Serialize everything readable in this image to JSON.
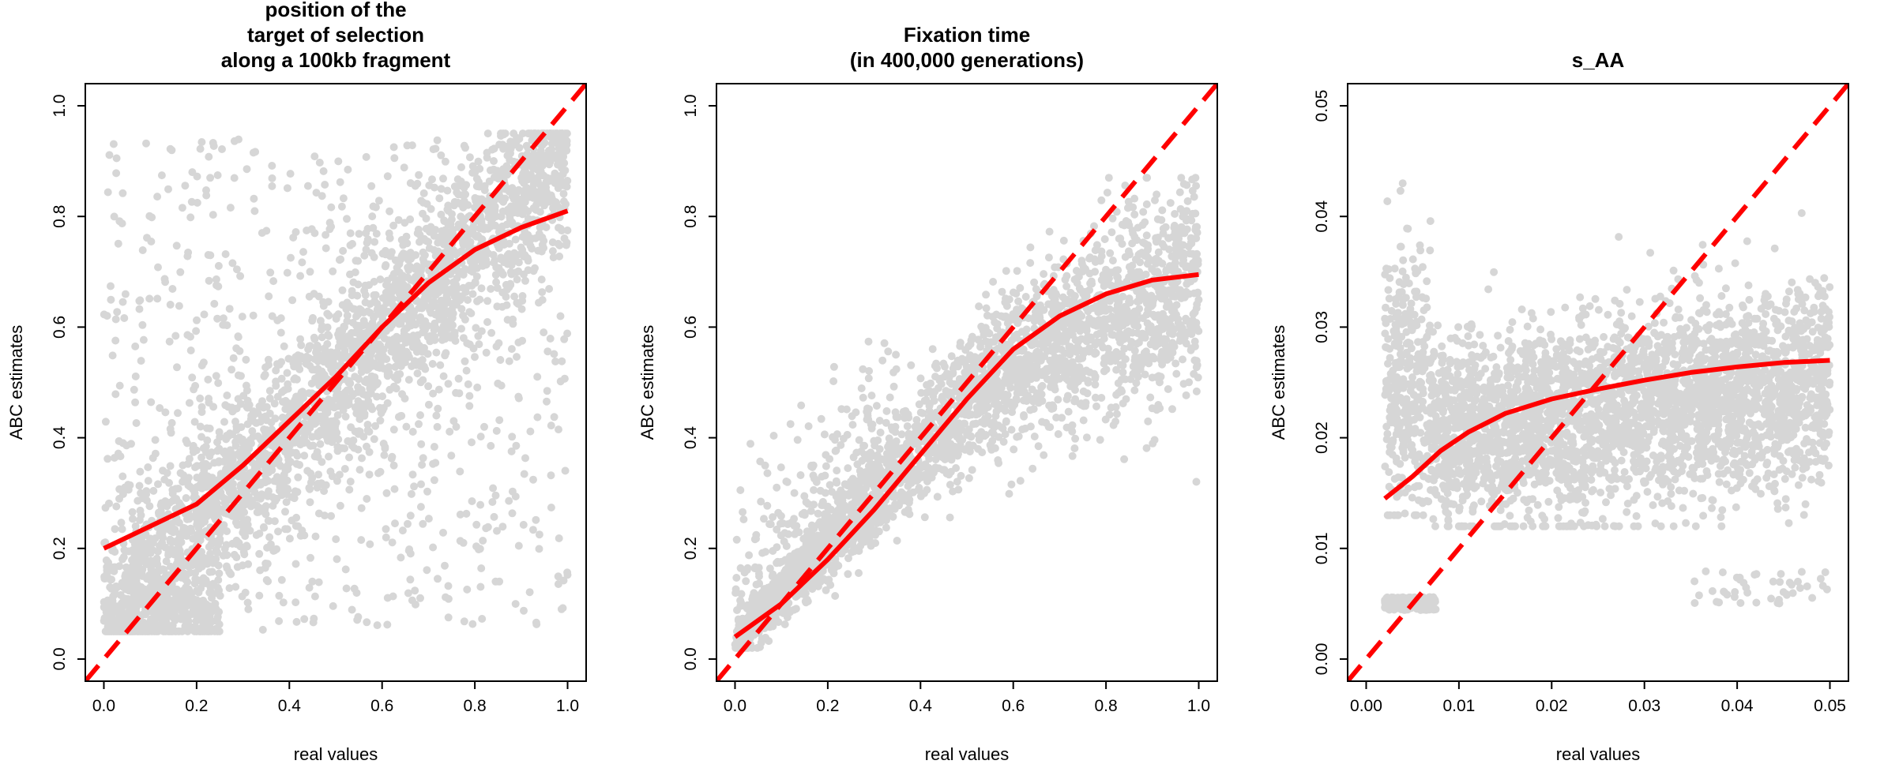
{
  "chart_data": [
    {
      "type": "scatter",
      "title_lines": [
        "position of the",
        "target of selection",
        "along a 100kb fragment"
      ],
      "xlabel": "real values",
      "ylabel": "ABC estimates",
      "xlim": [
        -0.04,
        1.04
      ],
      "ylim": [
        -0.04,
        1.04
      ],
      "xticks": [
        0.0,
        0.2,
        0.4,
        0.6,
        0.8,
        1.0
      ],
      "xtick_labels": [
        "0.0",
        "0.2",
        "0.4",
        "0.6",
        "0.8",
        "1.0"
      ],
      "yticks": [
        0.0,
        0.2,
        0.4,
        0.6,
        0.8,
        1.0
      ],
      "ytick_labels": [
        "0.0",
        "0.2",
        "0.4",
        "0.6",
        "0.8",
        "1.0"
      ],
      "points_color": "#000000",
      "points_opacity": 0.16,
      "series": [
        {
          "kind": "identity-line",
          "style": "dashed",
          "color": "#ff0000",
          "x": [
            -0.04,
            1.04
          ],
          "y": [
            -0.04,
            1.04
          ]
        },
        {
          "kind": "loess-fit",
          "style": "solid",
          "color": "#ff0000",
          "x": [
            0.0,
            0.1,
            0.2,
            0.3,
            0.4,
            0.5,
            0.6,
            0.7,
            0.8,
            0.9,
            1.0
          ],
          "y": [
            0.2,
            0.24,
            0.28,
            0.35,
            0.43,
            0.51,
            0.6,
            0.68,
            0.74,
            0.78,
            0.81
          ]
        }
      ]
    },
    {
      "type": "scatter",
      "title_lines": [
        "Fixation time",
        "(in 400,000 generations)"
      ],
      "xlabel": "real values",
      "ylabel": "ABC estimates",
      "xlim": [
        -0.04,
        1.04
      ],
      "ylim": [
        -0.04,
        1.04
      ],
      "xticks": [
        0.0,
        0.2,
        0.4,
        0.6,
        0.8,
        1.0
      ],
      "xtick_labels": [
        "0.0",
        "0.2",
        "0.4",
        "0.6",
        "0.8",
        "1.0"
      ],
      "yticks": [
        0.0,
        0.2,
        0.4,
        0.6,
        0.8,
        1.0
      ],
      "ytick_labels": [
        "0.0",
        "0.2",
        "0.4",
        "0.6",
        "0.8",
        "1.0"
      ],
      "points_color": "#000000",
      "points_opacity": 0.16,
      "series": [
        {
          "kind": "identity-line",
          "style": "dashed",
          "color": "#ff0000",
          "x": [
            -0.04,
            1.04
          ],
          "y": [
            -0.04,
            1.04
          ]
        },
        {
          "kind": "loess-fit",
          "style": "solid",
          "color": "#ff0000",
          "x": [
            0.0,
            0.1,
            0.2,
            0.3,
            0.4,
            0.5,
            0.6,
            0.7,
            0.8,
            0.9,
            1.0
          ],
          "y": [
            0.04,
            0.1,
            0.18,
            0.27,
            0.37,
            0.47,
            0.56,
            0.62,
            0.66,
            0.685,
            0.695
          ]
        }
      ]
    },
    {
      "type": "scatter",
      "title_lines": [
        "s_AA"
      ],
      "xlabel": "real values",
      "ylabel": "ABC estimates",
      "xlim": [
        -0.002,
        0.052
      ],
      "ylim": [
        -0.002,
        0.052
      ],
      "xticks": [
        0.0,
        0.01,
        0.02,
        0.03,
        0.04,
        0.05
      ],
      "xtick_labels": [
        "0.00",
        "0.01",
        "0.02",
        "0.03",
        "0.04",
        "0.05"
      ],
      "yticks": [
        0.0,
        0.01,
        0.02,
        0.03,
        0.04,
        0.05
      ],
      "ytick_labels": [
        "0.00",
        "0.01",
        "0.02",
        "0.03",
        "0.04",
        "0.05"
      ],
      "points_color": "#000000",
      "points_opacity": 0.16,
      "series": [
        {
          "kind": "identity-line",
          "style": "dashed",
          "color": "#ff0000",
          "x": [
            -0.002,
            0.052
          ],
          "y": [
            -0.002,
            0.052
          ]
        },
        {
          "kind": "loess-fit",
          "style": "solid",
          "color": "#ff0000",
          "x": [
            0.002,
            0.005,
            0.008,
            0.011,
            0.015,
            0.02,
            0.025,
            0.03,
            0.035,
            0.04,
            0.045,
            0.05
          ],
          "y": [
            0.0145,
            0.0165,
            0.0188,
            0.0205,
            0.0222,
            0.0235,
            0.0244,
            0.0252,
            0.0259,
            0.0264,
            0.0268,
            0.027
          ]
        }
      ]
    }
  ]
}
